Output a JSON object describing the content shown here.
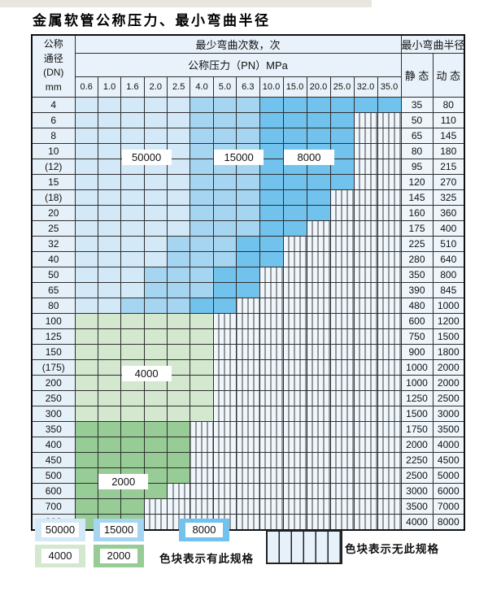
{
  "page": {
    "title": "金属软管公称压力、最小弯曲半径"
  },
  "table": {
    "corner_lines": [
      "公称",
      "通径",
      "(DN)",
      "mm"
    ],
    "cycles_header": "最少弯曲次数，次",
    "pressure_header": "公称压力（PN）MPa",
    "pressure_cols": [
      "0.6",
      "1.0",
      "1.6",
      "2.0",
      "2.5",
      "4.0",
      "5.0",
      "6.3",
      "10.0",
      "15.0",
      "20.0",
      "25.0",
      "32.0",
      "35.0"
    ],
    "radius_header": "最小弯曲半径",
    "static_header": "静 态",
    "dynamic_header": "动 态",
    "rows": [
      {
        "dn": "4",
        "static": "35",
        "dynamic": "80",
        "bands": [
          [
            "light_blue",
            4
          ],
          [
            "med_blue",
            7
          ],
          [
            "deep_blue",
            13
          ]
        ]
      },
      {
        "dn": "6",
        "static": "50",
        "dynamic": "110",
        "bands": [
          [
            "light_blue",
            4
          ],
          [
            "med_blue",
            7
          ],
          [
            "deep_blue",
            11
          ]
        ]
      },
      {
        "dn": "8",
        "static": "65",
        "dynamic": "145",
        "bands": [
          [
            "light_blue",
            4
          ],
          [
            "med_blue",
            7
          ],
          [
            "deep_blue",
            11
          ]
        ]
      },
      {
        "dn": "10",
        "static": "80",
        "dynamic": "180",
        "bands": [
          [
            "light_blue",
            4
          ],
          [
            "med_blue",
            7
          ],
          [
            "deep_blue",
            11
          ]
        ]
      },
      {
        "dn": "(12)",
        "static": "95",
        "dynamic": "215",
        "bands": [
          [
            "light_blue",
            4
          ],
          [
            "med_blue",
            7
          ],
          [
            "deep_blue",
            11
          ]
        ]
      },
      {
        "dn": "15",
        "static": "120",
        "dynamic": "270",
        "bands": [
          [
            "light_blue",
            4
          ],
          [
            "med_blue",
            7
          ],
          [
            "deep_blue",
            11
          ]
        ]
      },
      {
        "dn": "(18)",
        "static": "145",
        "dynamic": "325",
        "bands": [
          [
            "light_blue",
            4
          ],
          [
            "med_blue",
            7
          ],
          [
            "deep_blue",
            10
          ]
        ]
      },
      {
        "dn": "20",
        "static": "160",
        "dynamic": "360",
        "bands": [
          [
            "light_blue",
            4
          ],
          [
            "med_blue",
            7
          ],
          [
            "deep_blue",
            10
          ]
        ]
      },
      {
        "dn": "25",
        "static": "175",
        "dynamic": "400",
        "bands": [
          [
            "light_blue",
            4
          ],
          [
            "med_blue",
            7
          ],
          [
            "deep_blue",
            9
          ]
        ]
      },
      {
        "dn": "32",
        "static": "225",
        "dynamic": "510",
        "bands": [
          [
            "light_blue",
            3
          ],
          [
            "med_blue",
            6
          ],
          [
            "deep_blue",
            8
          ]
        ]
      },
      {
        "dn": "40",
        "static": "280",
        "dynamic": "640",
        "bands": [
          [
            "light_blue",
            3
          ],
          [
            "med_blue",
            6
          ],
          [
            "deep_blue",
            8
          ]
        ]
      },
      {
        "dn": "50",
        "static": "350",
        "dynamic": "800",
        "bands": [
          [
            "light_blue",
            2
          ],
          [
            "med_blue",
            5
          ],
          [
            "deep_blue",
            7
          ]
        ]
      },
      {
        "dn": "65",
        "static": "390",
        "dynamic": "845",
        "bands": [
          [
            "light_blue",
            2
          ],
          [
            "med_blue",
            5
          ],
          [
            "deep_blue",
            7
          ]
        ]
      },
      {
        "dn": "80",
        "static": "480",
        "dynamic": "1000",
        "bands": [
          [
            "light_blue",
            1
          ],
          [
            "med_blue",
            4
          ],
          [
            "deep_blue",
            6
          ]
        ]
      },
      {
        "dn": "100",
        "static": "600",
        "dynamic": "1200",
        "bands": [
          [
            "light_green",
            5
          ]
        ]
      },
      {
        "dn": "125",
        "static": "750",
        "dynamic": "1500",
        "bands": [
          [
            "light_green",
            5
          ]
        ]
      },
      {
        "dn": "150",
        "static": "900",
        "dynamic": "1800",
        "bands": [
          [
            "light_green",
            5
          ]
        ]
      },
      {
        "dn": "(175)",
        "static": "1000",
        "dynamic": "2000",
        "bands": [
          [
            "light_green",
            5
          ]
        ]
      },
      {
        "dn": "200",
        "static": "1000",
        "dynamic": "2000",
        "bands": [
          [
            "light_green",
            5
          ]
        ]
      },
      {
        "dn": "250",
        "static": "1250",
        "dynamic": "2500",
        "bands": [
          [
            "light_green",
            5
          ]
        ]
      },
      {
        "dn": "300",
        "static": "1500",
        "dynamic": "3000",
        "bands": [
          [
            "light_green",
            5
          ]
        ]
      },
      {
        "dn": "350",
        "static": "1750",
        "dynamic": "3500",
        "bands": [
          [
            "med_green",
            4
          ]
        ]
      },
      {
        "dn": "400",
        "static": "2000",
        "dynamic": "4000",
        "bands": [
          [
            "med_green",
            4
          ]
        ]
      },
      {
        "dn": "450",
        "static": "2250",
        "dynamic": "4500",
        "bands": [
          [
            "med_green",
            4
          ]
        ]
      },
      {
        "dn": "500",
        "static": "2500",
        "dynamic": "5000",
        "bands": [
          [
            "med_green",
            4
          ]
        ]
      },
      {
        "dn": "600",
        "static": "3000",
        "dynamic": "6000",
        "bands": [
          [
            "med_green",
            3
          ]
        ]
      },
      {
        "dn": "700",
        "static": "3500",
        "dynamic": "7000",
        "bands": [
          [
            "med_green",
            2
          ]
        ]
      },
      {
        "dn": "800",
        "static": "4000",
        "dynamic": "8000",
        "bands": [
          [
            "med_green",
            2
          ]
        ]
      }
    ],
    "cycle_labels": [
      {
        "text": "50000",
        "col": 2,
        "span": 2,
        "row_boundary": 4
      },
      {
        "text": "15000",
        "col": 6,
        "span": 2,
        "row_boundary": 4
      },
      {
        "text": "8000",
        "col": 9,
        "span": 2,
        "row_boundary": 4
      },
      {
        "text": "4000",
        "col": 2,
        "span": 2,
        "row_boundary": 18
      },
      {
        "text": "2000",
        "col": 1,
        "span": 2,
        "row_boundary": 25
      }
    ]
  },
  "colors": {
    "light_blue": "#d4e9f8",
    "med_blue": "#a6d5f2",
    "deep_blue": "#72c2ee",
    "light_green": "#d4e8cf",
    "med_green": "#97cc96"
  },
  "legend": {
    "has_spec_label": "色块表示有此规格",
    "no_spec_label": "色块表示无此规格",
    "swatches_row1": [
      {
        "value": "50000",
        "color": "light_blue"
      },
      {
        "value": "15000",
        "color": "med_blue"
      },
      {
        "value": "8000",
        "color": "deep_blue"
      }
    ],
    "swatches_row2": [
      {
        "value": "4000",
        "color": "light_green"
      },
      {
        "value": "2000",
        "color": "med_green"
      }
    ]
  }
}
